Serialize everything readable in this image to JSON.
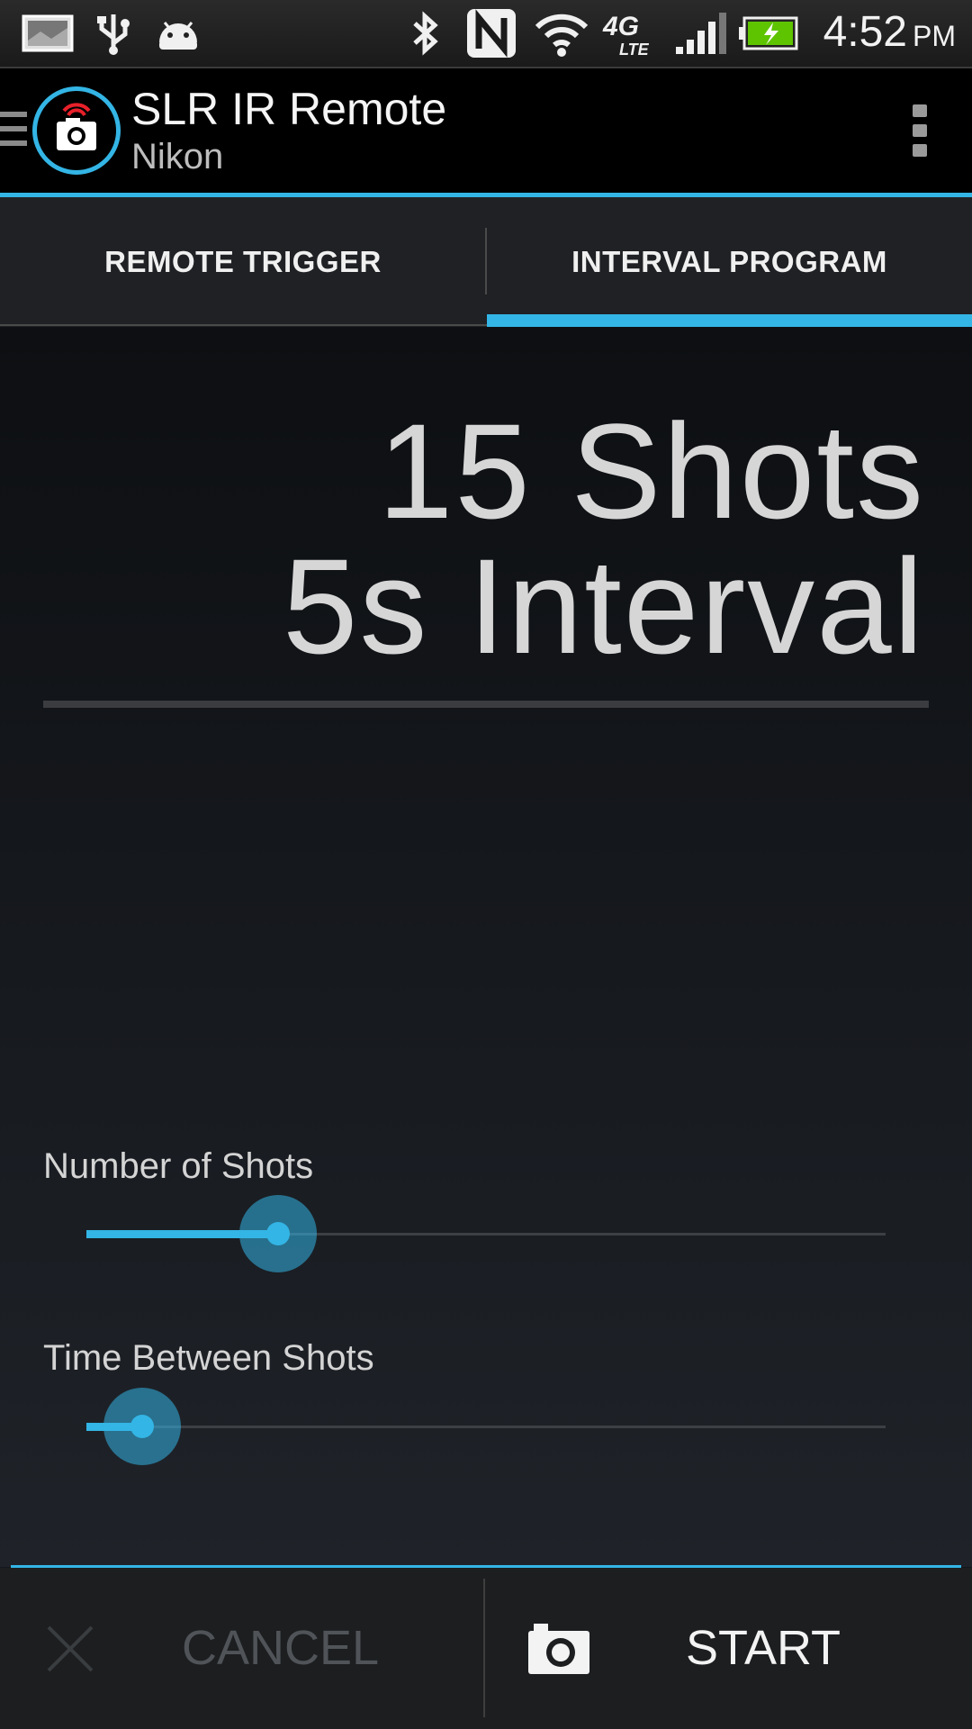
{
  "status_bar": {
    "time": "4:52",
    "ampm": "PM",
    "icons": [
      "gallery-icon",
      "usb-icon",
      "android-icon",
      "bluetooth-icon",
      "nfc-icon",
      "wifi-icon",
      "4g-lte-icon",
      "signal-icon",
      "battery-charging-icon"
    ]
  },
  "action_bar": {
    "title": "SLR IR Remote",
    "subtitle": "Nikon"
  },
  "tabs": [
    {
      "label": "REMOTE TRIGGER",
      "selected": false
    },
    {
      "label": "INTERVAL PROGRAM",
      "selected": true
    }
  ],
  "summary": {
    "shots_line": "15 Shots",
    "interval_line": "5s Interval"
  },
  "sliders": [
    {
      "label": "Number of Shots",
      "fraction": 0.24
    },
    {
      "label": "Time Between Shots",
      "fraction": 0.07
    }
  ],
  "bottom_bar": {
    "cancel_label": "CANCEL",
    "start_label": "START"
  },
  "colors": {
    "accent": "#33b5e5",
    "background": "#14171b",
    "battery": "#5ec400"
  }
}
